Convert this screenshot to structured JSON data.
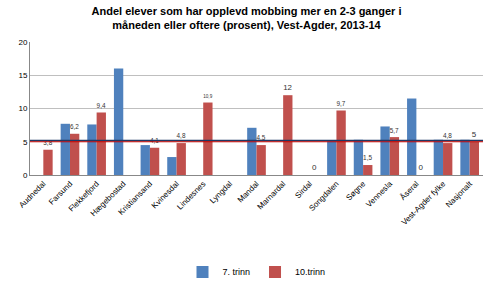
{
  "chart_data": {
    "type": "bar",
    "title": "Andel elever som har opplevd mobbing mer en 2-3 ganger i\nmåneden eller oftere (prosent), Vest-Agder, 2013-14",
    "categories": [
      "Audnedal",
      "Farsund",
      "Flekkefjord",
      "Hægebostad",
      "Kristiansand",
      "Kvinesdal",
      "Lindesnes",
      "Lyngdal",
      "Mandal",
      "Marnardal",
      "Sirdal",
      "Songdalen",
      "Søgne",
      "Vennesla",
      "Åseral",
      "Vest-Agder fylke",
      "Nasjonalt"
    ],
    "series": [
      {
        "name": "7. trinn",
        "color": "#4f81bd",
        "values": [
          null,
          7.7,
          7.6,
          16,
          4.5,
          2.7,
          null,
          null,
          7.1,
          null,
          null,
          5.2,
          5.3,
          7.3,
          11.5,
          5.3,
          5.3
        ]
      },
      {
        "name": "10.trinn",
        "color": "#c0504d",
        "data_labels": true,
        "values": [
          3.8,
          6.2,
          9.4,
          null,
          4.1,
          4.8,
          10.9,
          null,
          4.5,
          12,
          0,
          9.7,
          1.5,
          5.7,
          0,
          4.8,
          5
        ],
        "value_labels": [
          "3,8",
          "6,2",
          "9,4",
          null,
          "4,1",
          "4,8",
          "10,9",
          null,
          "4,5",
          "12",
          "0",
          "9,7",
          "1,5",
          "5,7",
          "0",
          "4,8",
          "5"
        ]
      }
    ],
    "reference_lines": [
      {
        "value": 5.2,
        "color": "#1f3864"
      },
      {
        "value": 5,
        "color": "#c00000"
      }
    ],
    "ylim": [
      0,
      20
    ],
    "yticks": [
      0,
      5,
      10,
      15,
      20
    ],
    "grid": true,
    "legend": "bottom"
  }
}
